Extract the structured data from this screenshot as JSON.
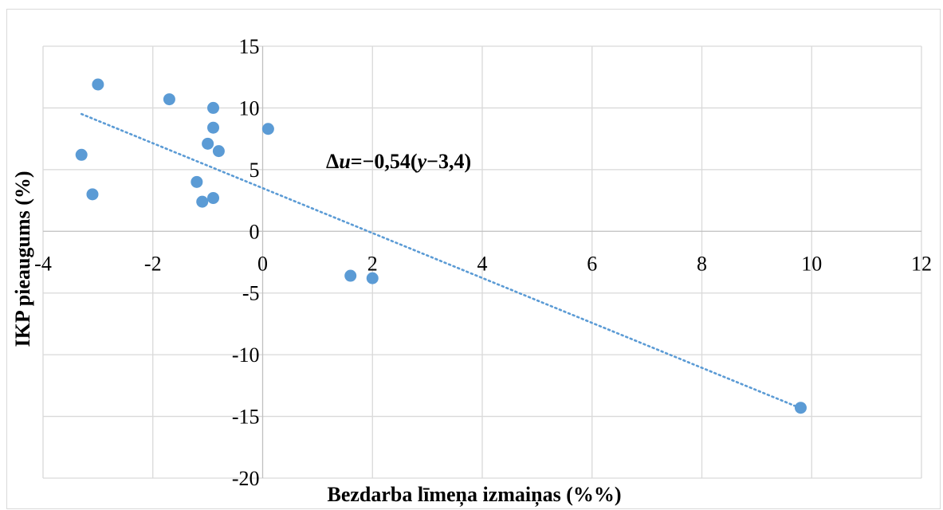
{
  "chart_data": {
    "type": "scatter",
    "title": "",
    "xlabel": "Bezdarba līmeņa izmaiņas (%%)",
    "ylabel": "IKP pieaugums (%)",
    "xlim": [
      -4,
      12
    ],
    "ylim": [
      -20,
      15
    ],
    "x_ticks": [
      -4,
      -2,
      0,
      2,
      4,
      6,
      8,
      10,
      12
    ],
    "y_ticks": [
      -20,
      -15,
      -10,
      -5,
      0,
      5,
      10,
      15
    ],
    "x_tick_labels": [
      "-4",
      "-2",
      "0",
      "2",
      "4",
      "6",
      "8",
      "10",
      "12"
    ],
    "y_tick_labels": [
      "-20",
      "-15",
      "-10",
      "-5",
      "0",
      "5",
      "10",
      "15"
    ],
    "grid": true,
    "legend": "none",
    "point_color": "#5b9bd5",
    "series": [
      {
        "points": [
          {
            "x": -3.3,
            "y": 6.2
          },
          {
            "x": -3.1,
            "y": 3.0
          },
          {
            "x": -3.0,
            "y": 11.9
          },
          {
            "x": -1.7,
            "y": 10.7
          },
          {
            "x": -1.2,
            "y": 4.0
          },
          {
            "x": -1.1,
            "y": 2.4
          },
          {
            "x": -1.0,
            "y": 7.1
          },
          {
            "x": -0.9,
            "y": 10.0
          },
          {
            "x": -0.9,
            "y": 8.4
          },
          {
            "x": -0.9,
            "y": 2.7
          },
          {
            "x": -0.8,
            "y": 6.5
          },
          {
            "x": 0.1,
            "y": 8.3
          },
          {
            "x": 1.6,
            "y": -3.6
          },
          {
            "x": 2.0,
            "y": -3.8
          },
          {
            "x": 9.8,
            "y": -14.3
          }
        ]
      }
    ],
    "trendline": {
      "type": "linear",
      "style": "dotted",
      "color": "#5b9bd5",
      "x_start": -3.3,
      "x_end": 9.8,
      "slope": -1.82,
      "intercept": 3.5
    },
    "annotation": {
      "prefix": "Δ",
      "var_u": "u",
      "mid": "=−0,54(",
      "var_y": "y",
      "suffix": "−3,4)"
    }
  }
}
